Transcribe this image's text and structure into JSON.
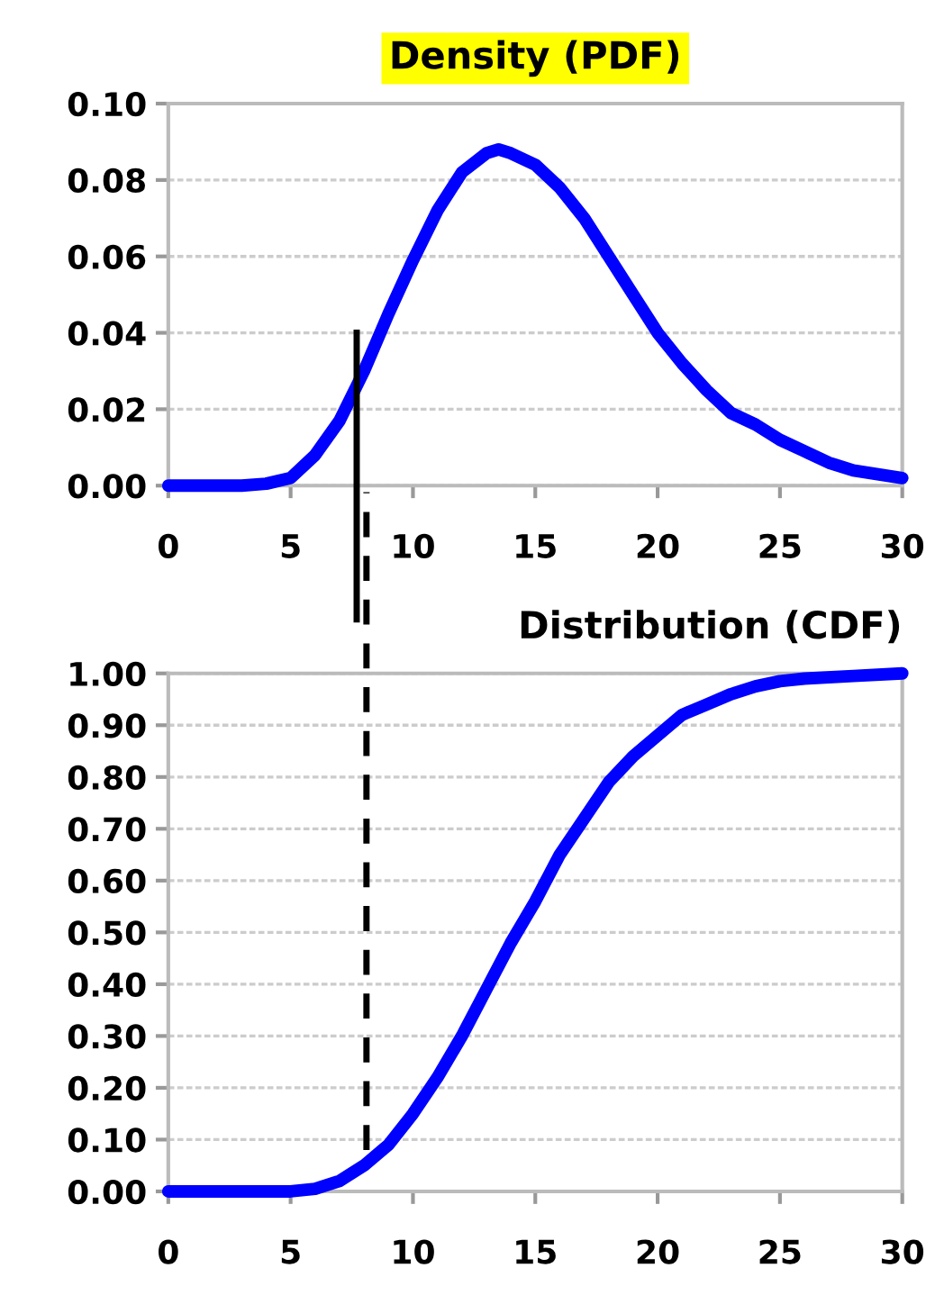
{
  "chart_data": [
    {
      "type": "line",
      "title": "Density (PDF)",
      "x": [
        0,
        3,
        4,
        5,
        6,
        7,
        8,
        9,
        10,
        11,
        12,
        13,
        13.5,
        14,
        15,
        16,
        17,
        18,
        19,
        20,
        21,
        22,
        23,
        24,
        25,
        26,
        27,
        28,
        29,
        30
      ],
      "series": [
        {
          "color": "#0000ff",
          "values": [
            0,
            0,
            0.0005,
            0.002,
            0.008,
            0.017,
            0.03,
            0.045,
            0.059,
            0.072,
            0.082,
            0.087,
            0.088,
            0.087,
            0.084,
            0.078,
            0.07,
            0.06,
            0.05,
            0.04,
            0.032,
            0.025,
            0.019,
            0.016,
            0.012,
            0.009,
            0.006,
            0.004,
            0.003,
            0.002
          ]
        }
      ],
      "xlim": [
        0,
        30
      ],
      "xticks": [
        0,
        5,
        10,
        15,
        20,
        25,
        30
      ],
      "ylim": [
        0,
        0.1
      ],
      "yticks": [
        {
          "value": 0,
          "label": "0.00"
        },
        {
          "value": 0.02,
          "label": "0.02"
        },
        {
          "value": 0.04,
          "label": "0.04"
        },
        {
          "value": 0.06,
          "label": "0.06"
        },
        {
          "value": 0.08,
          "label": "0.08"
        },
        {
          "value": 0.1,
          "label": "0.10"
        }
      ],
      "ref_lines": [
        {
          "axis": "x",
          "value": 7.7,
          "color": "#000000",
          "line_style": "solid"
        }
      ],
      "grid": "y",
      "marker": "none",
      "line_style": "solid",
      "legend": false
    },
    {
      "type": "line",
      "title": "Distribution (CDF)",
      "x": [
        0,
        5,
        6,
        7,
        8,
        9,
        10,
        11,
        12,
        13,
        14,
        15,
        16,
        17,
        18,
        19,
        20,
        21,
        22,
        23,
        24,
        25,
        26,
        28,
        30
      ],
      "series": [
        {
          "color": "#0000ff",
          "values": [
            0,
            0,
            0.005,
            0.02,
            0.05,
            0.09,
            0.15,
            0.22,
            0.3,
            0.39,
            0.48,
            0.56,
            0.65,
            0.72,
            0.79,
            0.84,
            0.88,
            0.92,
            0.94,
            0.96,
            0.975,
            0.985,
            0.99,
            0.995,
            1.0
          ]
        }
      ],
      "xlim": [
        0,
        30
      ],
      "xticks": [
        0,
        5,
        10,
        15,
        20,
        25,
        30
      ],
      "ylim": [
        0,
        1
      ],
      "yticks": [
        {
          "value": 0,
          "label": "0.00"
        },
        {
          "value": 0.1,
          "label": "0.10"
        },
        {
          "value": 0.2,
          "label": "0.20"
        },
        {
          "value": 0.3,
          "label": "0.30"
        },
        {
          "value": 0.4,
          "label": "0.40"
        },
        {
          "value": 0.5,
          "label": "0.50"
        },
        {
          "value": 0.6,
          "label": "0.60"
        },
        {
          "value": 0.7,
          "label": "0.70"
        },
        {
          "value": 0.8,
          "label": "0.80"
        },
        {
          "value": 0.9,
          "label": "0.90"
        },
        {
          "value": 1,
          "label": "1.00"
        }
      ],
      "ref_lines": [
        {
          "axis": "x",
          "value": 8.1,
          "color": "#000000",
          "line_style": "dashed"
        }
      ],
      "grid": "y",
      "marker": "none",
      "line_style": "solid",
      "legend": false
    }
  ]
}
